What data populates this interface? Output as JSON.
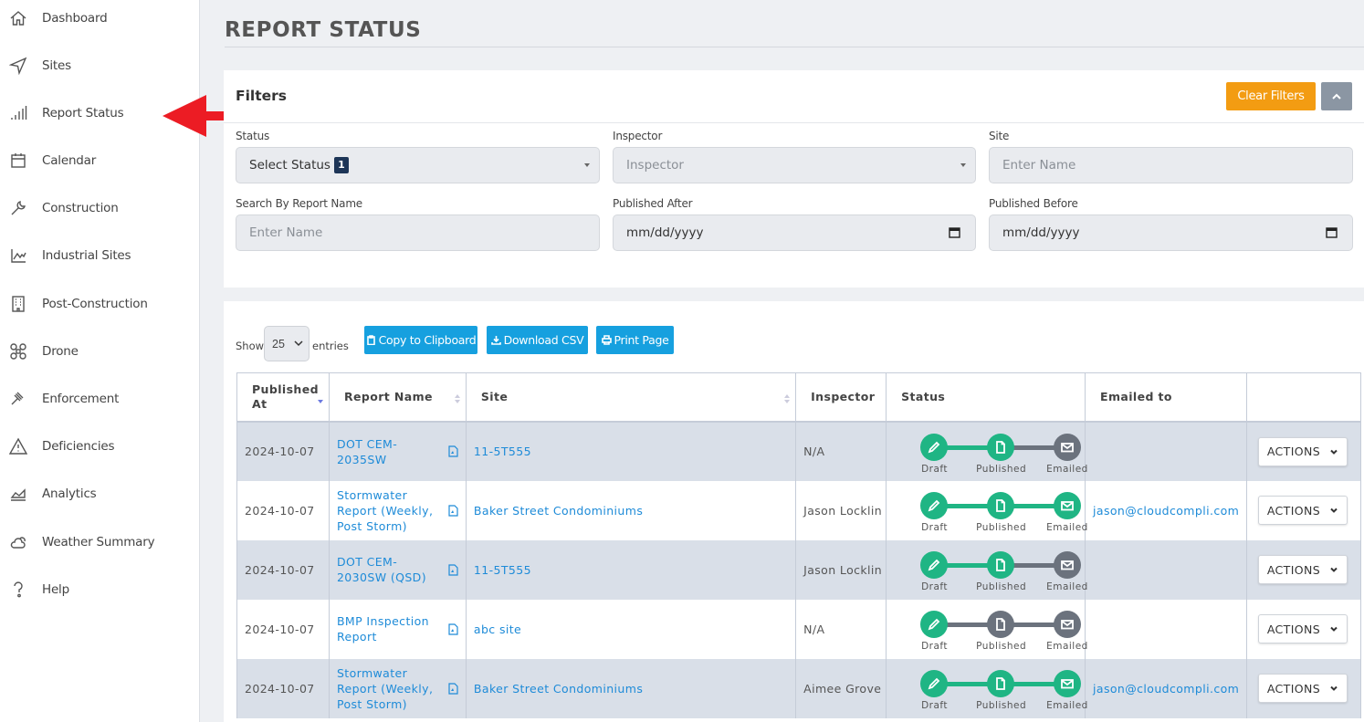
{
  "sidebar": {
    "items": [
      {
        "label": "Dashboard",
        "icon": "home-icon"
      },
      {
        "label": "Sites",
        "icon": "navigation-arrow-icon"
      },
      {
        "label": "Report Status",
        "icon": "signal-bars-icon"
      },
      {
        "label": "Calendar",
        "icon": "calendar-icon"
      },
      {
        "label": "Construction",
        "icon": "wrench-icon"
      },
      {
        "label": "Industrial Sites",
        "icon": "factory-chart-icon"
      },
      {
        "label": "Post-Construction",
        "icon": "building-icon"
      },
      {
        "label": "Drone",
        "icon": "drone-icon"
      },
      {
        "label": "Enforcement",
        "icon": "gavel-icon"
      },
      {
        "label": "Deficiencies",
        "icon": "warning-triangle-icon"
      },
      {
        "label": "Analytics",
        "icon": "area-chart-icon"
      },
      {
        "label": "Weather Summary",
        "icon": "cloud-sun-icon"
      },
      {
        "label": "Help",
        "icon": "question-icon"
      }
    ]
  },
  "annotation": {
    "color": "#ec1c24"
  },
  "page": {
    "title": "REPORT STATUS"
  },
  "filters": {
    "heading": "Filters",
    "clear_label": "Clear Filters",
    "status": {
      "label": "Status",
      "value": "Select Status",
      "count": "1"
    },
    "inspector": {
      "label": "Inspector",
      "placeholder": "Inspector"
    },
    "site": {
      "label": "Site",
      "placeholder": "Enter Name"
    },
    "report_name": {
      "label": "Search By Report Name",
      "placeholder": "Enter Name"
    },
    "published_after": {
      "label": "Published After",
      "value": "mm/dd/yyyy"
    },
    "published_before": {
      "label": "Published Before",
      "value": "mm/dd/yyyy"
    }
  },
  "table_controls": {
    "show_label": "Show",
    "entries_value": "25",
    "entries_label": "entries",
    "copy_label": "Copy to Clipboard",
    "csv_label": "Download CSV",
    "print_label": "Print Page"
  },
  "table": {
    "headers": [
      "Published At",
      "Report Name",
      "Site",
      "Inspector",
      "Status",
      "Emailed to",
      ""
    ],
    "status_labels": [
      "Draft",
      "Published",
      "Emailed"
    ],
    "actions_label": "ACTIONS",
    "colors": {
      "done": "#1fb584",
      "pending": "#6b727d"
    },
    "rows": [
      {
        "published_at": "2024-10-07",
        "report_name": "DOT CEM-2035SW",
        "site": "11-5T555",
        "inspector": "N/A",
        "status": [
          true,
          true,
          false
        ],
        "emailed_to": ""
      },
      {
        "published_at": "2024-10-07",
        "report_name": "Stormwater Report (Weekly, Post Storm)",
        "site": "Baker Street Condominiums",
        "inspector": "Jason Locklin",
        "status": [
          true,
          true,
          true
        ],
        "emailed_to": "jason@cloudcompli.com"
      },
      {
        "published_at": "2024-10-07",
        "report_name": "DOT CEM-2030SW (QSD)",
        "site": "11-5T555",
        "inspector": "Jason Locklin",
        "status": [
          true,
          true,
          false
        ],
        "emailed_to": ""
      },
      {
        "published_at": "2024-10-07",
        "report_name": "BMP Inspection Report",
        "site": "abc site",
        "inspector": "N/A",
        "status": [
          true,
          false,
          false
        ],
        "emailed_to": ""
      },
      {
        "published_at": "2024-10-07",
        "report_name": "Stormwater Report (Weekly, Post Storm)",
        "site": "Baker Street Condominiums",
        "inspector": "Aimee Grove",
        "status": [
          true,
          true,
          true
        ],
        "emailed_to": "jason@cloudcompli.com"
      }
    ]
  }
}
